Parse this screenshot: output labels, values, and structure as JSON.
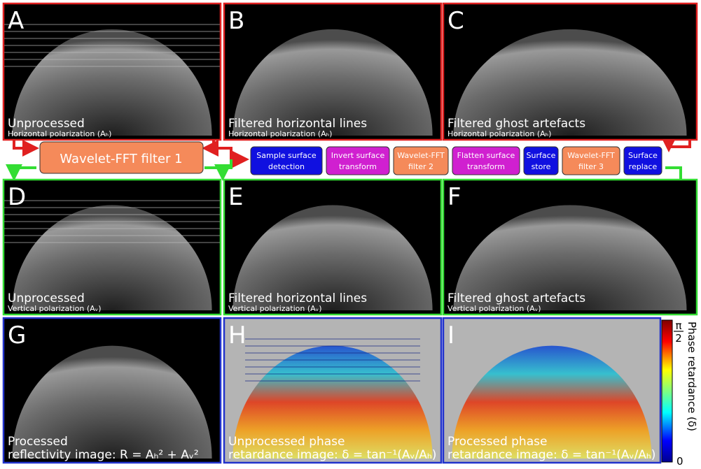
{
  "panels": [
    {
      "letter": "A",
      "title": [
        "Unprocessed"
      ],
      "subtitle": "Horizontal polarization (Aₕ)",
      "border": "#e02020"
    },
    {
      "letter": "B",
      "title": [
        "Filtered horizontal lines"
      ],
      "subtitle": "Horizontal polarization (Aₕ)",
      "border": "#e02020"
    },
    {
      "letter": "C",
      "title": [
        "Filtered ghost artefacts"
      ],
      "subtitle": "Horizontal polarization (Aₕ)",
      "border": "#e02020"
    },
    {
      "letter": "D",
      "title": [
        "Unprocessed"
      ],
      "subtitle": "Vertical polarization (Aᵥ)",
      "border": "#33dd33"
    },
    {
      "letter": "E",
      "title": [
        "Filtered horizontal lines"
      ],
      "subtitle": "Vertical polarization (Aᵥ)",
      "border": "#33dd33"
    },
    {
      "letter": "F",
      "title": [
        "Filtered ghost artefacts"
      ],
      "subtitle": "Vertical polarization (Aᵥ)",
      "border": "#33dd33"
    },
    {
      "letter": "G",
      "title": [
        "Processed",
        "reflectivity image: R = Aₕ² + Aᵥ²"
      ],
      "border": "#2233cc"
    },
    {
      "letter": "H",
      "title": [
        "Unprocessed phase",
        "retardance image: δ = tan⁻¹(Aᵥ/Aₕ)"
      ],
      "border": "#2233cc"
    },
    {
      "letter": "I",
      "title": [
        "Processed phase",
        "retardance image: δ = tan⁻¹(Aᵥ/Aₕ)"
      ],
      "border": "#2233cc"
    }
  ],
  "filter1": {
    "label": "Wavelet-FFT filter 1",
    "color": "#f58a5a"
  },
  "pipeline": [
    {
      "lines": [
        "Sample surface",
        "detection"
      ],
      "color": "#1010e0"
    },
    {
      "lines": [
        "Invert surface",
        "transform"
      ],
      "color": "#d020d0"
    },
    {
      "lines": [
        "Wavelet-FFT",
        "filter 2"
      ],
      "color": "#f58a5a"
    },
    {
      "lines": [
        "Flatten surface",
        "transform"
      ],
      "color": "#d020d0"
    },
    {
      "lines": [
        "Surface",
        "store"
      ],
      "color": "#1010e0"
    },
    {
      "lines": [
        "Wavelet-FFT",
        "filter 3"
      ],
      "color": "#f58a5a"
    },
    {
      "lines": [
        "Surface",
        "replace"
      ],
      "color": "#1010e0"
    }
  ],
  "colorbar": {
    "top_numerator": "π",
    "top_denominator": "2",
    "bottom": "0",
    "title": "Phase retardance (δ)"
  }
}
